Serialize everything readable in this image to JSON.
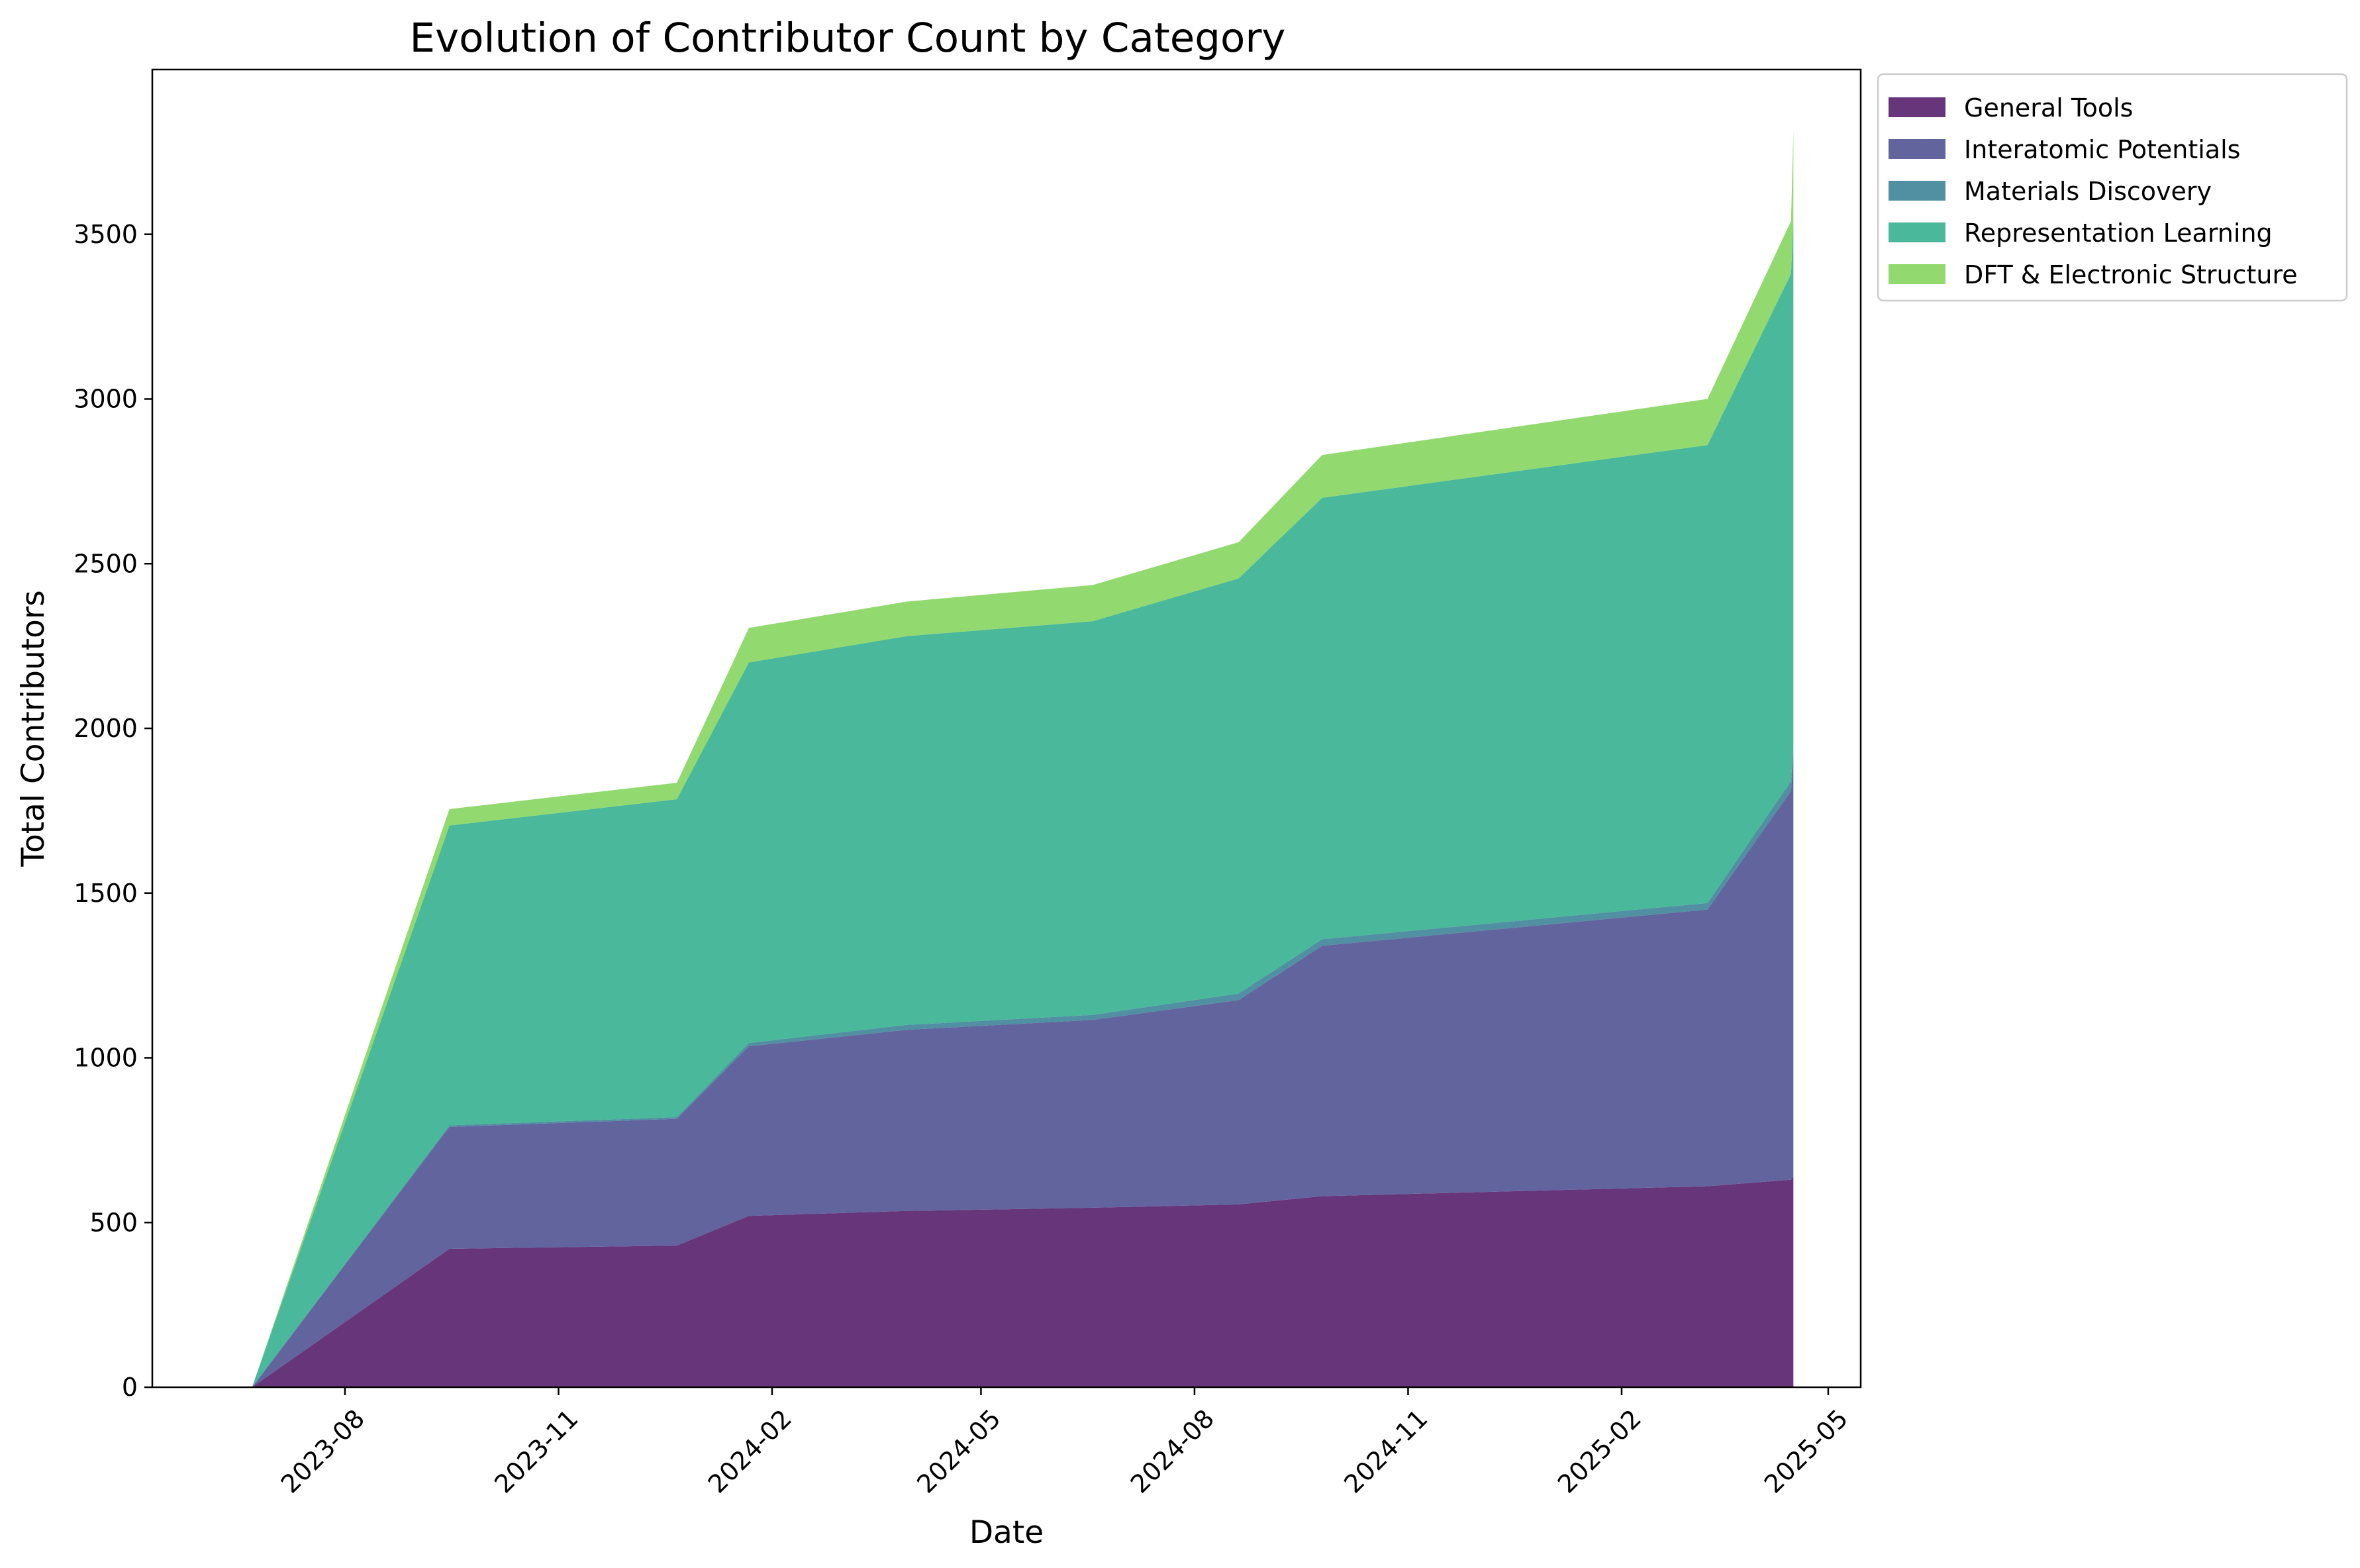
{
  "chart_data": {
    "type": "area",
    "stacked": true,
    "title": "Evolution of Contributor Count by Category",
    "xlabel": "Date",
    "ylabel": "Total Contributors",
    "x_ticks": [
      "2023-08",
      "2023-11",
      "2024-02",
      "2024-05",
      "2024-08",
      "2024-11",
      "2025-02",
      "2025-05"
    ],
    "y_ticks": [
      0,
      500,
      1000,
      1500,
      2000,
      2500,
      3000,
      3500
    ],
    "xlim": [
      "2023-05-10",
      "2025-05-15"
    ],
    "ylim": [
      0,
      4000
    ],
    "grid": false,
    "legend_position": "outside top-right",
    "x": [
      "2023-06-22",
      "2023-09-15",
      "2023-12-22",
      "2024-01-22",
      "2024-03-30",
      "2024-06-18",
      "2024-08-20",
      "2024-09-25",
      "2025-03-10",
      "2025-04-15",
      "2025-04-16"
    ],
    "series": [
      {
        "name": "General Tools",
        "color": "#46085c",
        "values": [
          0,
          420,
          430,
          520,
          535,
          545,
          555,
          580,
          610,
          630,
          640
        ]
      },
      {
        "name": "Interatomic Potentials",
        "color": "#404387",
        "values": [
          0,
          370,
          385,
          515,
          550,
          570,
          620,
          760,
          840,
          1180,
          1270
        ]
      },
      {
        "name": "Materials Discovery",
        "color": "#29788e",
        "values": [
          0,
          5,
          5,
          10,
          15,
          15,
          20,
          20,
          20,
          30,
          35
        ]
      },
      {
        "name": "Representation Learning",
        "color": "#22a884",
        "values": [
          0,
          910,
          965,
          1155,
          1180,
          1195,
          1260,
          1340,
          1390,
          1540,
          1590
        ]
      },
      {
        "name": "DFT & Electronic Structure",
        "color": "#7ad151",
        "values": [
          0,
          50,
          50,
          105,
          105,
          110,
          110,
          130,
          140,
          160,
          280
        ]
      }
    ]
  }
}
